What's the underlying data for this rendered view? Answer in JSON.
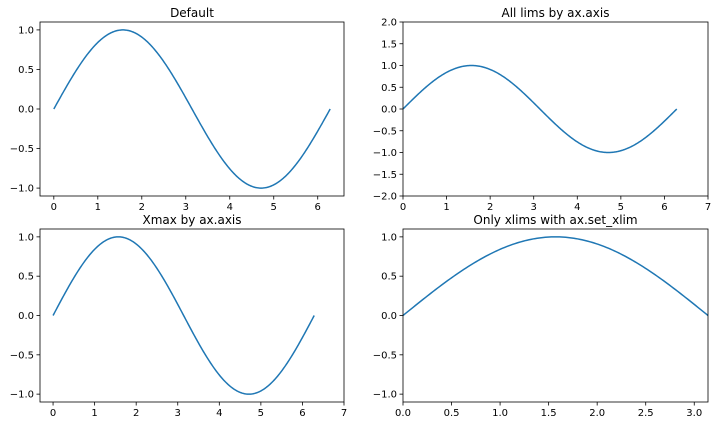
{
  "chart_data": [
    {
      "type": "line",
      "title": "Default",
      "xlabel": "",
      "ylabel": "",
      "function": "sin(x)",
      "x_domain": [
        0,
        6.2832
      ],
      "xlim": [
        -0.3142,
        6.5973
      ],
      "ylim": [
        -1.1,
        1.1
      ],
      "xticks": [
        0,
        1,
        2,
        3,
        4,
        5,
        6
      ],
      "xticklabels": [
        "0",
        "1",
        "2",
        "3",
        "4",
        "5",
        "6"
      ],
      "yticks": [
        -1.0,
        -0.5,
        0.0,
        0.5,
        1.0
      ],
      "yticklabels": [
        "−1.0",
        "−0.5",
        "0.0",
        "0.5",
        "1.0"
      ],
      "grid": false,
      "color": "#1f77b4"
    },
    {
      "type": "line",
      "title": "All lims by ax.axis",
      "xlabel": "",
      "ylabel": "",
      "function": "sin(x)",
      "x_domain": [
        0,
        6.2832
      ],
      "xlim": [
        0,
        7
      ],
      "ylim": [
        -2,
        2
      ],
      "xticks": [
        0,
        1,
        2,
        3,
        4,
        5,
        6,
        7
      ],
      "xticklabels": [
        "0",
        "1",
        "2",
        "3",
        "4",
        "5",
        "6",
        "7"
      ],
      "yticks": [
        -2.0,
        -1.5,
        -1.0,
        -0.5,
        0.0,
        0.5,
        1.0,
        1.5,
        2.0
      ],
      "yticklabels": [
        "−2.0",
        "−1.5",
        "−1.0",
        "−0.5",
        "0.0",
        "0.5",
        "1.0",
        "1.5",
        "2.0"
      ],
      "grid": false,
      "color": "#1f77b4"
    },
    {
      "type": "line",
      "title": "Xmax by ax.axis",
      "xlabel": "",
      "ylabel": "",
      "function": "sin(x)",
      "x_domain": [
        0,
        6.2832
      ],
      "xlim": [
        -0.3142,
        7
      ],
      "ylim": [
        -1.1,
        1.1
      ],
      "xticks": [
        0,
        1,
        2,
        3,
        4,
        5,
        6,
        7
      ],
      "xticklabels": [
        "0",
        "1",
        "2",
        "3",
        "4",
        "5",
        "6",
        "7"
      ],
      "yticks": [
        -1.0,
        -0.5,
        0.0,
        0.5,
        1.0
      ],
      "yticklabels": [
        "−1.0",
        "−0.5",
        "0.0",
        "0.5",
        "1.0"
      ],
      "grid": false,
      "color": "#1f77b4"
    },
    {
      "type": "line",
      "title": "Only xlims with ax.set_xlim",
      "xlabel": "",
      "ylabel": "",
      "function": "sin(x)",
      "x_domain": [
        0,
        6.2832
      ],
      "xlim": [
        0,
        3.1416
      ],
      "ylim": [
        -1.1,
        1.1
      ],
      "xticks": [
        0.0,
        0.5,
        1.0,
        1.5,
        2.0,
        2.5,
        3.0
      ],
      "xticklabels": [
        "0.0",
        "0.5",
        "1.0",
        "1.5",
        "2.0",
        "2.5",
        "3.0"
      ],
      "yticks": [
        -1.0,
        -0.5,
        0.0,
        0.5,
        1.0
      ],
      "yticklabels": [
        "−1.0",
        "−0.5",
        "0.0",
        "0.5",
        "1.0"
      ],
      "grid": false,
      "color": "#1f77b4"
    }
  ]
}
